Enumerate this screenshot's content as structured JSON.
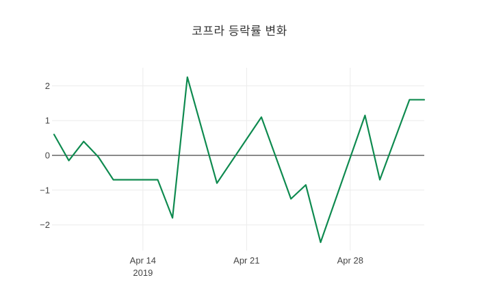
{
  "title": "코프라 등락률 변화",
  "chart_data": {
    "type": "line",
    "title": "코프라 등락률 변화",
    "xlabel": "",
    "ylabel": "",
    "series": [
      {
        "name": "등락률",
        "color": "#0e8a4f",
        "points": [
          {
            "date": "2019-04-08",
            "value": 0.6
          },
          {
            "date": "2019-04-09",
            "value": -0.15
          },
          {
            "date": "2019-04-10",
            "value": 0.4
          },
          {
            "date": "2019-04-11",
            "value": -0.05
          },
          {
            "date": "2019-04-12",
            "value": -0.7
          },
          {
            "date": "2019-04-15",
            "value": -0.7
          },
          {
            "date": "2019-04-16",
            "value": -1.8
          },
          {
            "date": "2019-04-17",
            "value": 2.25
          },
          {
            "date": "2019-04-19",
            "value": -0.8
          },
          {
            "date": "2019-04-22",
            "value": 1.1
          },
          {
            "date": "2019-04-24",
            "value": -1.25
          },
          {
            "date": "2019-04-25",
            "value": -0.85
          },
          {
            "date": "2019-04-26",
            "value": -2.5
          },
          {
            "date": "2019-04-29",
            "value": 1.15
          },
          {
            "date": "2019-04-30",
            "value": -0.7
          },
          {
            "date": "2019-05-02",
            "value": 1.6
          },
          {
            "date": "2019-05-03",
            "value": 1.6
          }
        ]
      }
    ],
    "yticks": [
      2,
      1,
      0,
      -1,
      -2
    ],
    "ylim": [
      -2.75,
      2.5
    ],
    "xticks": [
      {
        "date": "2019-04-14",
        "label": "Apr 14",
        "sublabel": "2019"
      },
      {
        "date": "2019-04-21",
        "label": "Apr 21",
        "sublabel": ""
      },
      {
        "date": "2019-04-28",
        "label": "Apr 28",
        "sublabel": ""
      }
    ],
    "grid": true,
    "legend": "none",
    "colors": {
      "line": "#0e8a4f",
      "gridline": "#ebebeb",
      "zeroline": "#444444",
      "tick_label": "#444444",
      "title": "#333333",
      "background": "#ffffff"
    }
  }
}
